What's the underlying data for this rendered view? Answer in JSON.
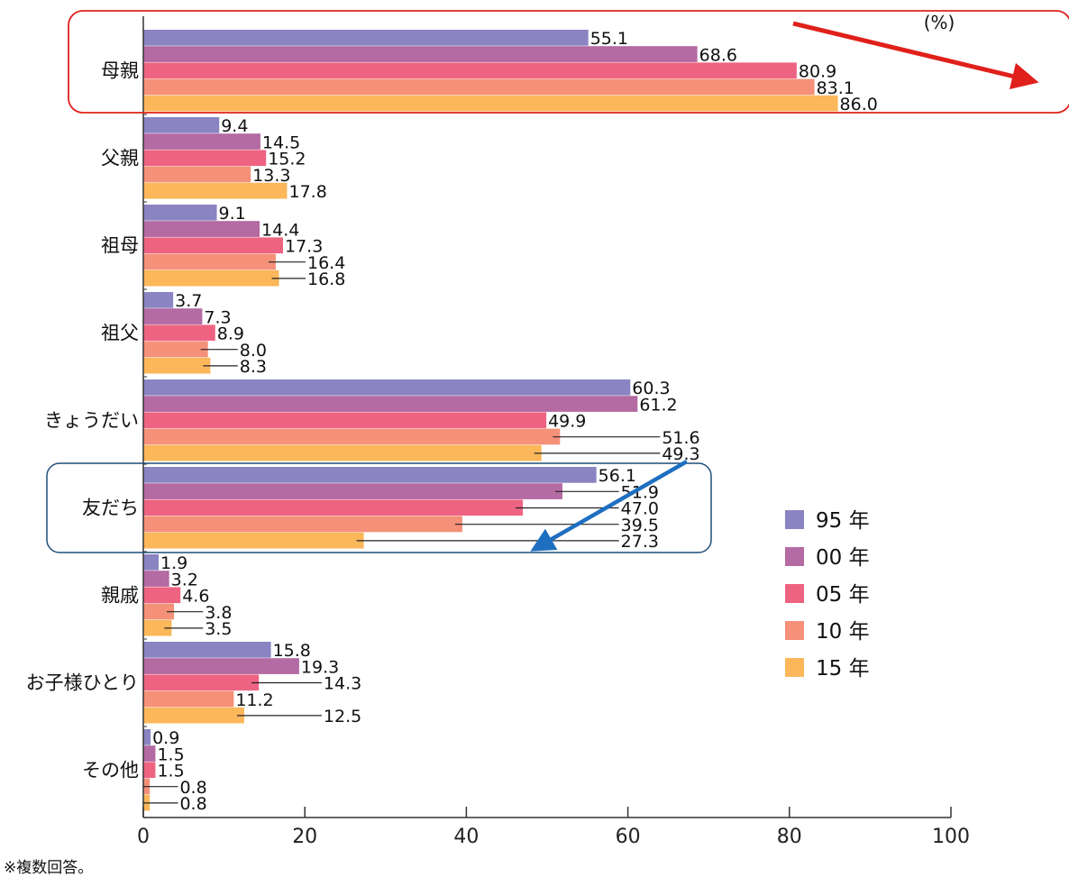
{
  "chart_data": {
    "type": "bar",
    "orientation": "horizontal",
    "unit": "(%)",
    "categories": [
      "母親",
      "父親",
      "祖母",
      "祖父",
      "きょうだい",
      "友だち",
      "親戚",
      "お子様ひとり",
      "その他"
    ],
    "series": [
      {
        "name": "95 年",
        "color": "#8a84c2",
        "values": [
          55.1,
          9.4,
          9.1,
          3.7,
          60.3,
          56.1,
          1.9,
          15.8,
          0.9
        ]
      },
      {
        "name": "00 年",
        "color": "#b46aa3",
        "values": [
          68.6,
          14.5,
          14.4,
          7.3,
          61.2,
          51.9,
          3.2,
          19.3,
          1.5
        ]
      },
      {
        "name": "05 年",
        "color": "#ee6382",
        "values": [
          80.9,
          15.2,
          17.3,
          8.9,
          49.9,
          47.0,
          4.6,
          14.3,
          1.5
        ]
      },
      {
        "name": "10 年",
        "color": "#f59079",
        "values": [
          83.1,
          13.3,
          16.4,
          8.0,
          51.6,
          39.5,
          3.8,
          11.2,
          0.8
        ]
      },
      {
        "name": "15 年",
        "color": "#fbb75a",
        "values": [
          86.0,
          17.8,
          16.8,
          8.3,
          49.3,
          27.3,
          3.5,
          12.5,
          0.8
        ]
      }
    ],
    "xlim": [
      0,
      100
    ],
    "xticks": [
      0,
      20,
      40,
      60,
      80,
      100
    ],
    "legend_position": "right",
    "highlights": [
      {
        "category": "母親",
        "box_color": "#e0201b",
        "arrow_color": "#e0201b",
        "arrow_direction": "down-right"
      },
      {
        "category": "友だち",
        "box_color": "#1f4e79",
        "arrow_color": "#1f6fc0",
        "arrow_direction": "down-left"
      }
    ]
  },
  "footnote": "※複数回答。"
}
